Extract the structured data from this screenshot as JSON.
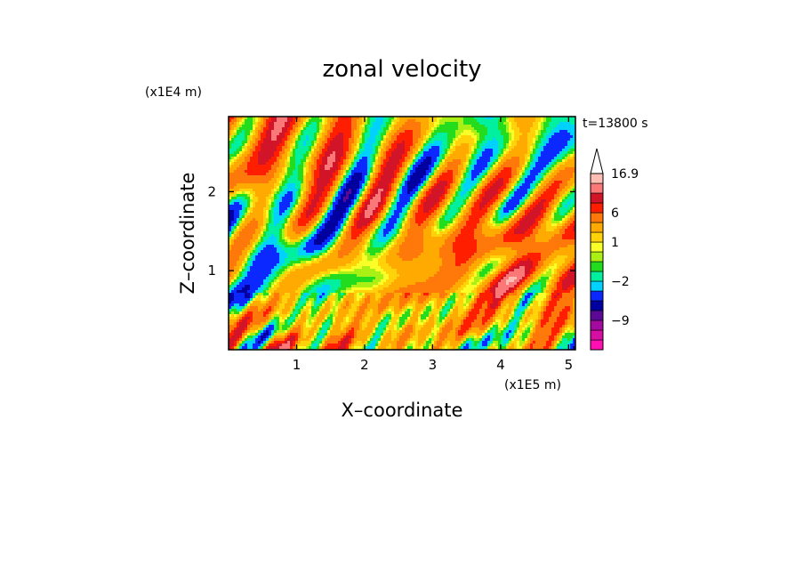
{
  "chart_data": {
    "type": "heatmap",
    "title": "zonal velocity",
    "xlabel": "X–coordinate",
    "ylabel": "Z–coordinate",
    "x_unit": "(x1E5 m)",
    "y_unit": "(x1E4 m)",
    "time_label": "t=13800 s",
    "xlim": [
      0,
      5.1
    ],
    "ylim": [
      0,
      2.95
    ],
    "x_ticks": [
      1,
      2,
      3,
      4,
      5
    ],
    "y_ticks": [
      1,
      2
    ],
    "colorbar": {
      "levels": [
        -13,
        -11,
        -9,
        -7,
        -5,
        -3,
        -2,
        -1,
        0,
        0.5,
        1,
        2,
        4,
        6,
        8,
        10,
        12,
        16.9
      ],
      "colors": [
        "#ff0fb4",
        "#d70ea3",
        "#a50aa0",
        "#5a0a96",
        "#0000a0",
        "#0a28ff",
        "#00d2ff",
        "#00f0a0",
        "#23dc1e",
        "#aaf014",
        "#faff28",
        "#ffd20a",
        "#ffaa00",
        "#ff780a",
        "#ff1e00",
        "#d21428",
        "#fa7878",
        "#ffbeb4"
      ],
      "tick_labels": [
        "16.9",
        "6",
        "1",
        "−2",
        "−9"
      ],
      "tick_values": [
        16.9,
        6,
        1,
        -2,
        -9
      ],
      "extend": "max"
    },
    "field_note_values": {
      "dominant_range": [
        -2,
        6
      ],
      "max": 16.9,
      "min": -13
    }
  }
}
